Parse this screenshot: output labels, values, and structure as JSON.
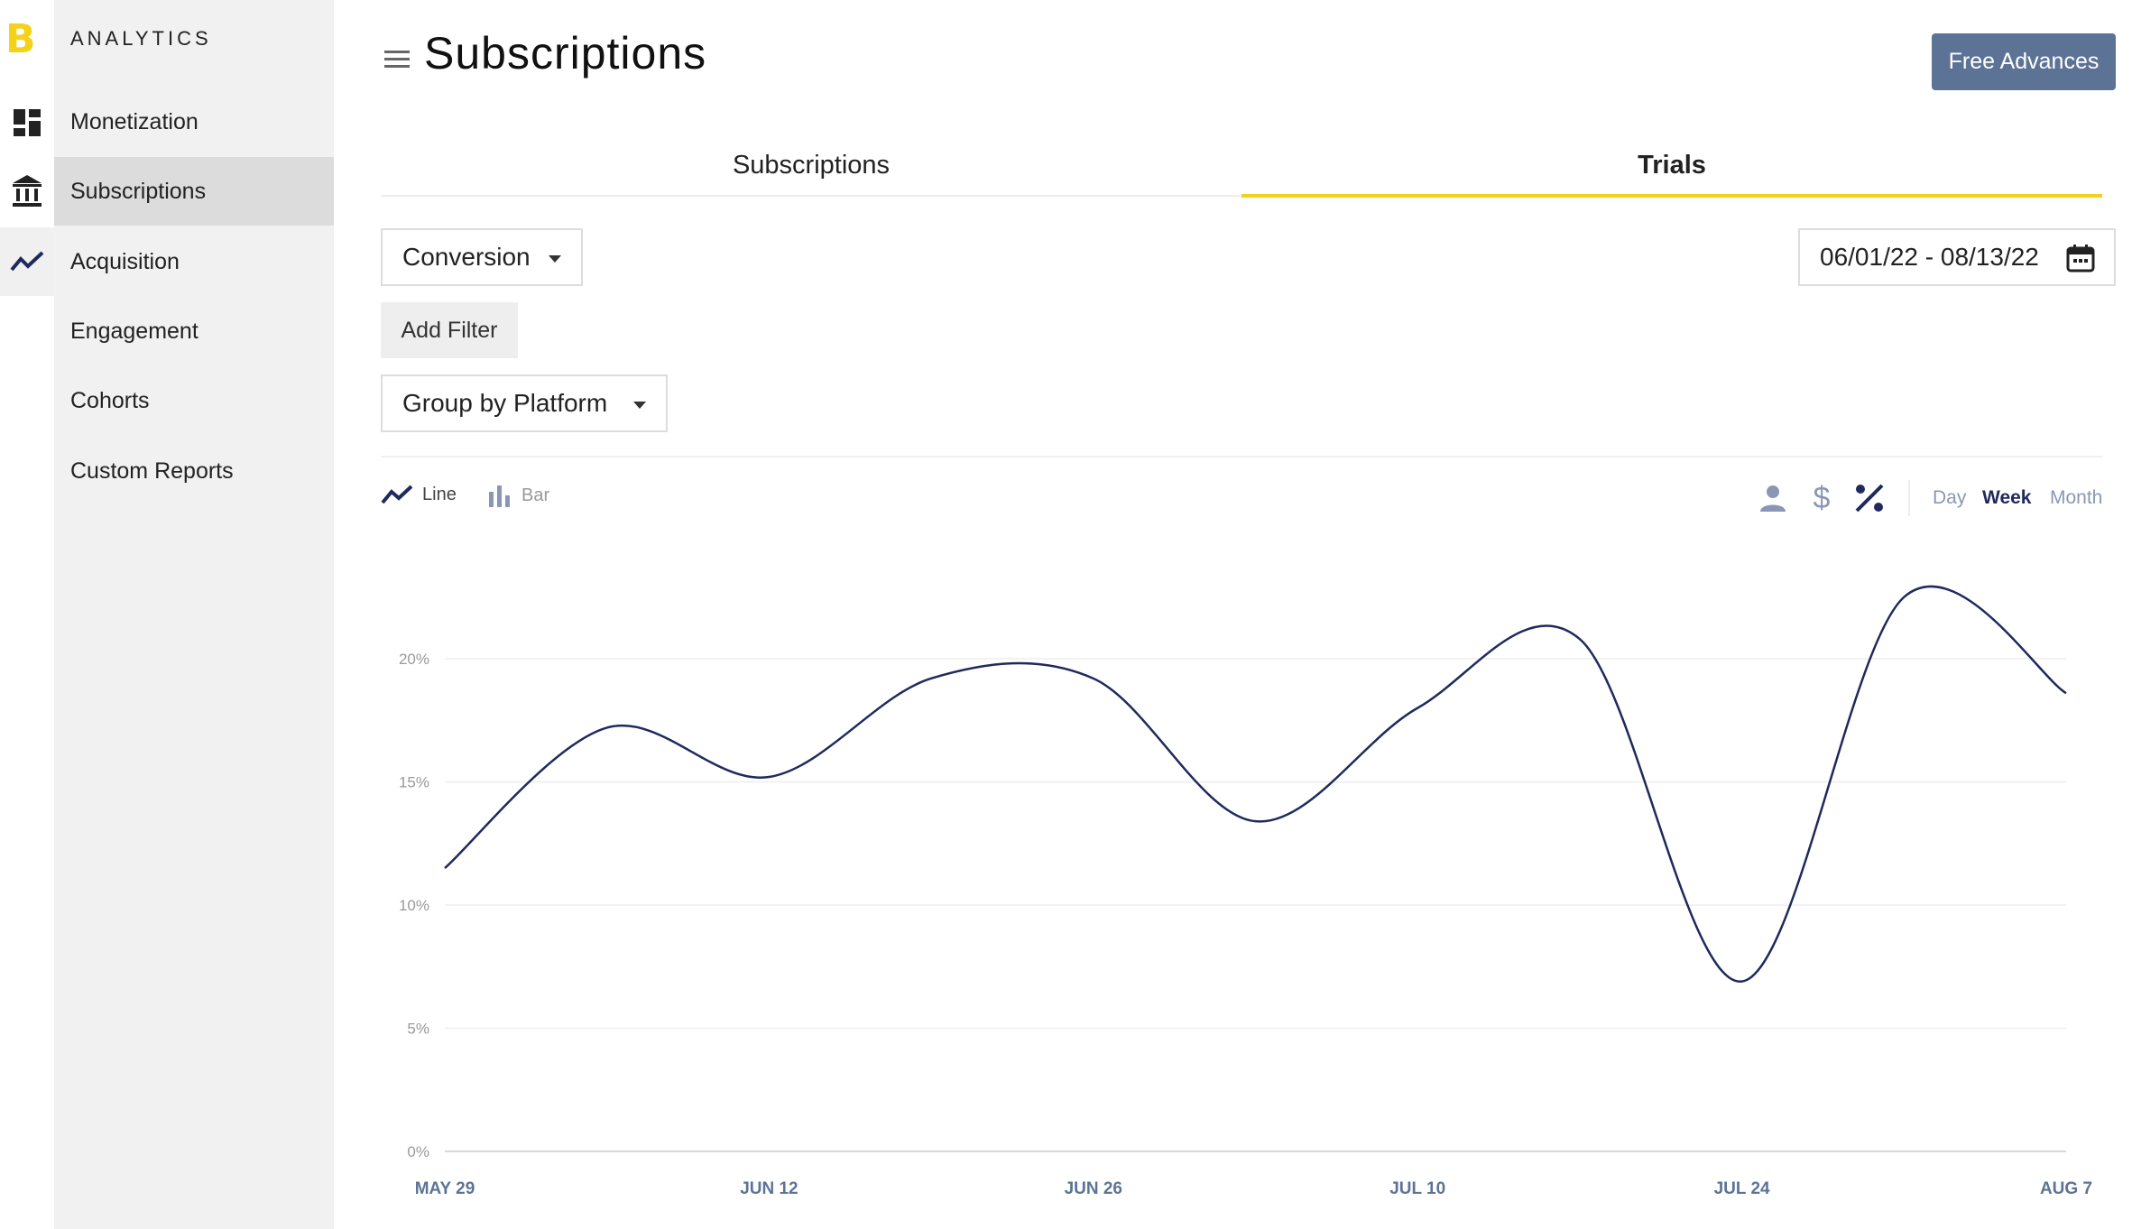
{
  "brand": {
    "logo": "B",
    "accent": "#f5d21a"
  },
  "sidebar": {
    "title": "ANALYTICS",
    "items": [
      {
        "label": "Monetization"
      },
      {
        "label": "Subscriptions"
      },
      {
        "label": "Acquisition"
      },
      {
        "label": "Engagement"
      },
      {
        "label": "Cohorts"
      },
      {
        "label": "Custom Reports"
      }
    ],
    "active_index": 1
  },
  "rail": {
    "icons": [
      "dashboard-icon",
      "bank-icon",
      "trend-icon"
    ]
  },
  "header": {
    "title": "Subscriptions",
    "cta_label": "Free Advances"
  },
  "tabs": [
    {
      "label": "Subscriptions"
    },
    {
      "label": "Trials"
    }
  ],
  "active_tab": "Trials",
  "filters": {
    "metric_select": "Conversion",
    "add_filter_label": "Add Filter",
    "group_select": "Group by Platform",
    "date_range": "06/01/22 - 08/13/22"
  },
  "chart_controls": {
    "line_label": "Line",
    "bar_label": "Bar",
    "active_chart_type": "line",
    "metric_icons": [
      "person-icon",
      "dollar-icon",
      "percent-icon"
    ],
    "active_metric": "percent-icon",
    "periods": [
      "Day",
      "Week",
      "Month"
    ],
    "active_period": "Week"
  },
  "chart_data": {
    "type": "line",
    "x": [
      "2022-05-29",
      "2022-06-05",
      "2022-06-12",
      "2022-06-19",
      "2022-06-26",
      "2022-07-03",
      "2022-07-10",
      "2022-07-17",
      "2022-07-24",
      "2022-07-31",
      "2022-08-07"
    ],
    "x_tick_labels": [
      "MAY 29",
      "JUN 12",
      "JUN 26",
      "JUL 10",
      "JUL 24",
      "AUG 7"
    ],
    "series": [
      {
        "values": [
          11.5,
          17.2,
          15.2,
          19.2,
          19.2,
          13.4,
          18.0,
          20.8,
          6.9,
          22.5,
          18.6
        ]
      }
    ],
    "y_ticks": [
      "0%",
      "5%",
      "10%",
      "15%",
      "20%"
    ],
    "ylim": [
      0,
      25
    ],
    "grid": true,
    "line_color": "#1f2a5c"
  }
}
